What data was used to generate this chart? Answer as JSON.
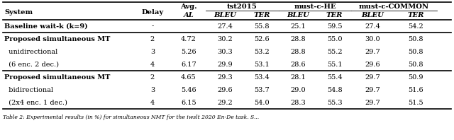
{
  "caption": "Table 2: Experimental results (in %) for simultaneous NMT for the iwslt 2020 En-De task. S...",
  "rows": [
    {
      "system": "Baseline wait-k (k=9)",
      "bold_system": true,
      "delay": "-",
      "avg_al": "",
      "tst_bleu": "27.4",
      "tst_ter": "55.8",
      "he_bleu": "25.1",
      "he_ter": "59.5",
      "com_bleu": "27.4",
      "com_ter": "54.2",
      "section_break_before": true,
      "section_break_after": true
    },
    {
      "system": "Proposed simultaneous MT",
      "bold_system": true,
      "delay": "2",
      "avg_al": "4.72",
      "tst_bleu": "30.2",
      "tst_ter": "52.6",
      "he_bleu": "28.8",
      "he_ter": "55.0",
      "com_bleu": "30.0",
      "com_ter": "50.8",
      "section_break_before": true,
      "section_break_after": false
    },
    {
      "system": "  unidirectional",
      "bold_system": false,
      "delay": "3",
      "avg_al": "5.26",
      "tst_bleu": "30.3",
      "tst_ter": "53.2",
      "he_bleu": "28.8",
      "he_ter": "55.2",
      "com_bleu": "29.7",
      "com_ter": "50.8",
      "section_break_before": false,
      "section_break_after": false
    },
    {
      "system": "  (6 enc. 2 dec.)",
      "bold_system": false,
      "delay": "4",
      "avg_al": "6.17",
      "tst_bleu": "29.9",
      "tst_ter": "53.1",
      "he_bleu": "28.6",
      "he_ter": "55.1",
      "com_bleu": "29.6",
      "com_ter": "50.8",
      "section_break_before": false,
      "section_break_after": true
    },
    {
      "system": "Proposed simultaneous MT",
      "bold_system": true,
      "delay": "2",
      "avg_al": "4.65",
      "tst_bleu": "29.3",
      "tst_ter": "53.4",
      "he_bleu": "28.1",
      "he_ter": "55.4",
      "com_bleu": "29.7",
      "com_ter": "50.9",
      "section_break_before": true,
      "section_break_after": false
    },
    {
      "system": "  bidirectional",
      "bold_system": false,
      "delay": "3",
      "avg_al": "5.46",
      "tst_bleu": "29.6",
      "tst_ter": "53.7",
      "he_bleu": "29.0",
      "he_ter": "54.8",
      "com_bleu": "29.7",
      "com_ter": "51.6",
      "section_break_before": false,
      "section_break_after": false
    },
    {
      "system": "  (2x4 enc. 1 dec.)",
      "bold_system": false,
      "delay": "4",
      "avg_al": "6.15",
      "tst_bleu": "29.2",
      "tst_ter": "54.0",
      "he_bleu": "28.3",
      "he_ter": "55.3",
      "com_bleu": "29.7",
      "com_ter": "51.5",
      "section_break_before": false,
      "section_break_after": true
    }
  ],
  "bg_color": "#ffffff",
  "text_color": "#000000",
  "fs": 7.0,
  "hfs": 7.2
}
